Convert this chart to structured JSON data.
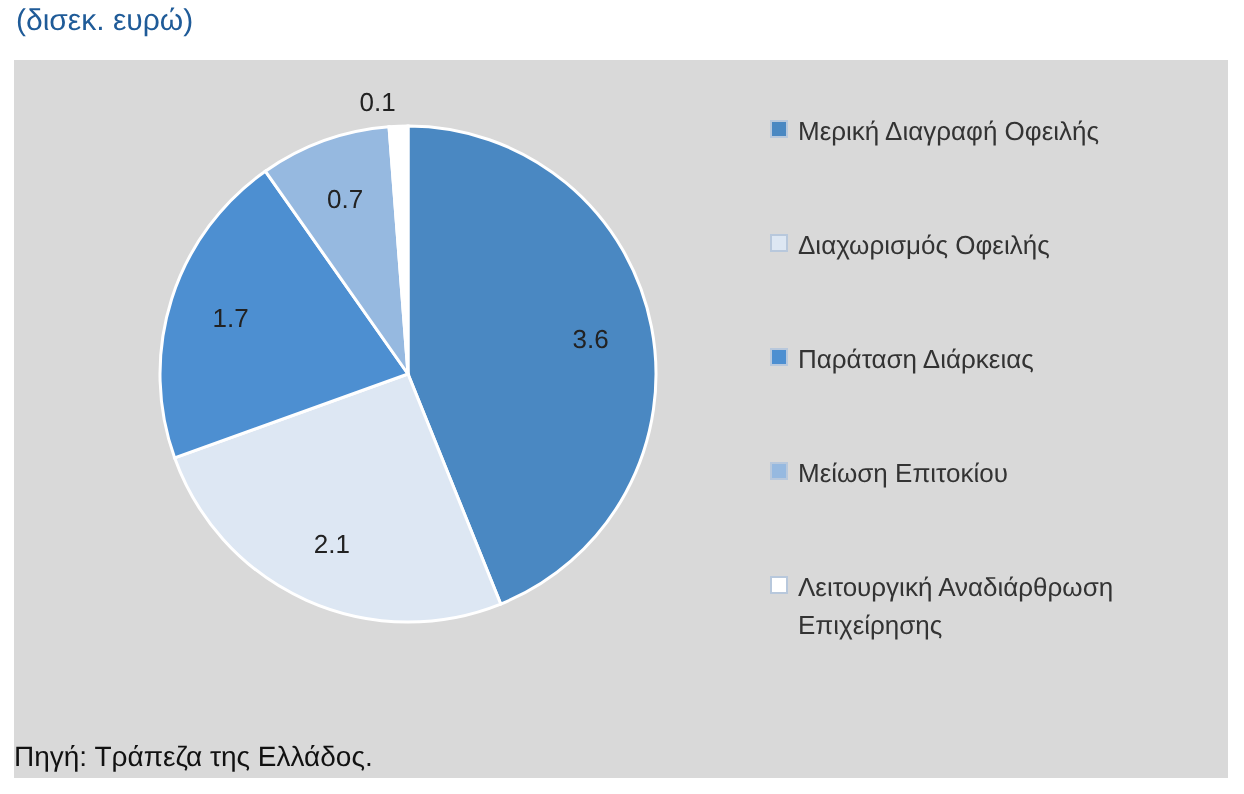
{
  "chart_data": {
    "type": "pie",
    "title": "(δισεκ. ευρώ)",
    "categories": [
      "Μερική Διαγραφή Οφειλής",
      "Διαχωρισμός Οφειλής",
      "Παράταση Διάρκειας",
      "Μείωση Επιτοκίου",
      "Λειτουργική Αναδιάρθρωση Επιχείρησης"
    ],
    "values": [
      3.6,
      2.1,
      1.7,
      0.7,
      0.1
    ],
    "colors": [
      "#4a88c2",
      "#dde7f3",
      "#4d8fd1",
      "#96b9e0",
      "#ffffff"
    ],
    "data_labels": true,
    "legend": "right",
    "annotations": [
      "Πηγή: Τράπεζα της Ελλάδος."
    ]
  }
}
